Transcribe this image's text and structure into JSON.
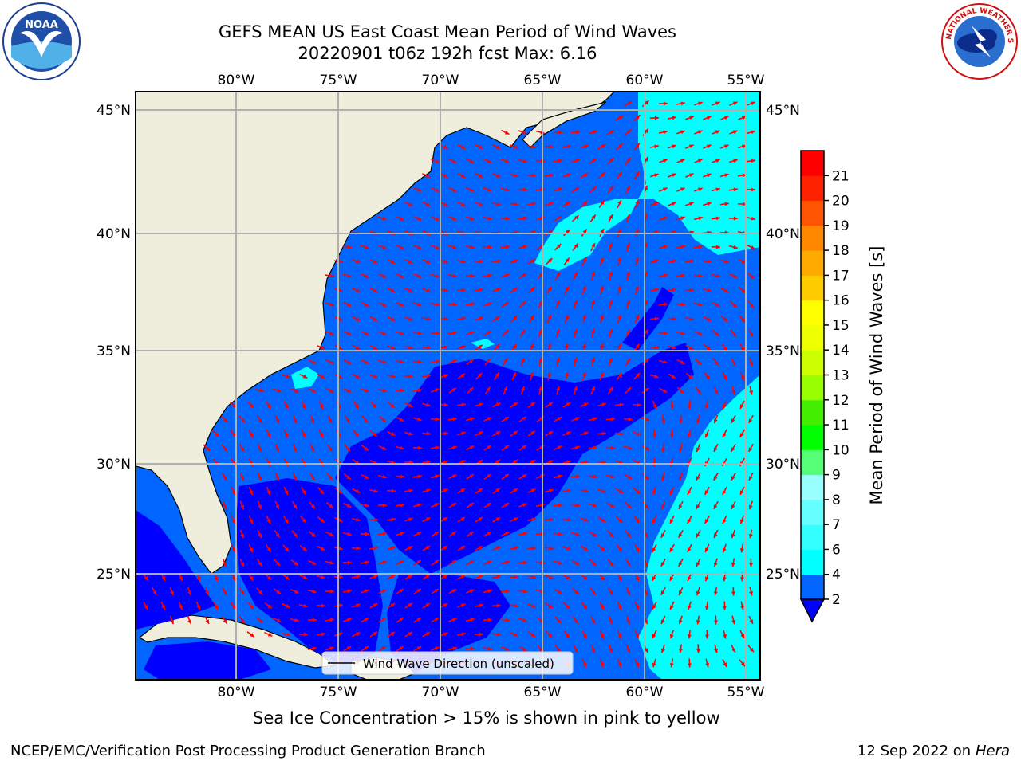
{
  "title_line1": "GEFS MEAN US East Coast Mean Period of Wind Waves",
  "title_line2": "20220901 t06z 192h fcst   Max: 6.16",
  "map": {
    "lon_ticks_top": [
      "80°W",
      "75°W",
      "70°W",
      "65°W",
      "60°W",
      "55°W"
    ],
    "lon_ticks_bottom": [
      "80°W",
      "75°W",
      "70°W",
      "65°W",
      "60°W",
      "55°W"
    ],
    "lat_ticks_left": [
      "45°N",
      "40°N",
      "35°N",
      "30°N",
      "25°N"
    ],
    "lat_ticks_right": [
      "45°N",
      "40°N",
      "35°N",
      "30°N",
      "25°N"
    ],
    "legend_label": "Wind Wave Direction (unscaled)",
    "land_color": "#efeedc",
    "arrow_color": "#ff0000",
    "grid_color": "#b0b0b0"
  },
  "colorbar": {
    "label": "Mean Period of Wind Waves [s]",
    "levels": [
      "2",
      "4",
      "6",
      "7",
      "8",
      "9",
      "10",
      "11",
      "12",
      "13",
      "14",
      "15",
      "16",
      "17",
      "18",
      "19",
      "20",
      "21"
    ],
    "colors": [
      "#0066ff",
      "#00ffff",
      "#33ffff",
      "#66ffff",
      "#99ffff",
      "#55ff77",
      "#00ff00",
      "#44ee00",
      "#99ff00",
      "#ccff00",
      "#eeff00",
      "#ffff00",
      "#ffcc00",
      "#ffaa00",
      "#ff8800",
      "#ff5500",
      "#ff2200",
      "#ff0000"
    ],
    "under_color": "#0000ff"
  },
  "footer_note": "Sea Ice Concentration > 15% is shown in pink to yellow",
  "credit_left": "NCEP/EMC/Verification Post Processing Product Generation Branch",
  "credit_right_date": "12 Sep 2022 on",
  "credit_right_host": "Hera",
  "logos": {
    "left": "NOAA",
    "right": "NATIONAL WEATHER SERVICE"
  }
}
